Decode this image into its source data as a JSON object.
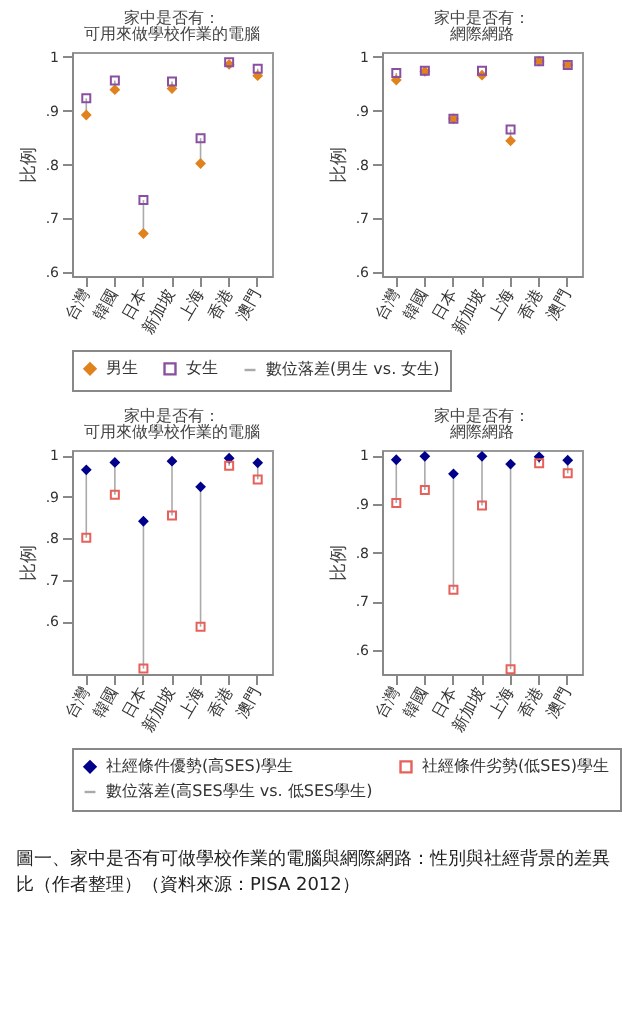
{
  "chart_data": [
    {
      "type": "scatter",
      "title": "家中是否有：",
      "subtitle": "可用來做學校作業的電腦",
      "ylabel": "比例",
      "categories": [
        "台灣",
        "韓國",
        "日本",
        "新加坡",
        "上海",
        "香港",
        "澳門"
      ],
      "ylim": [
        0.593,
        1.009
      ],
      "yticks": [
        {
          "value": 0.6,
          "label": ".6"
        },
        {
          "value": 0.7,
          "label": ".7"
        },
        {
          "value": 0.8,
          "label": ".8"
        },
        {
          "value": 0.9,
          "label": ".9"
        },
        {
          "value": 1,
          "label": "1"
        }
      ],
      "legend": "bottom",
      "annotations": [
        "數位落差(男生 vs. 女生)"
      ],
      "series": [
        {
          "name": "男生",
          "color": "#e0821e",
          "marker": "diamond",
          "values": [
            0.892,
            0.939,
            0.672,
            0.941,
            0.802,
            0.986,
            0.965
          ]
        },
        {
          "name": "女生",
          "color": "#8a4fa0",
          "marker": "square",
          "values": [
            0.923,
            0.956,
            0.734,
            0.954,
            0.849,
            0.99,
            0.978
          ]
        }
      ]
    },
    {
      "type": "scatter",
      "title": "家中是否有：",
      "subtitle": "網際網路",
      "ylabel": "比例",
      "categories": [
        "台灣",
        "韓國",
        "日本",
        "新加坡",
        "上海",
        "香港",
        "澳門"
      ],
      "ylim": [
        0.593,
        1.009
      ],
      "yticks": [
        {
          "value": 0.6,
          "label": ".6"
        },
        {
          "value": 0.7,
          "label": ".7"
        },
        {
          "value": 0.8,
          "label": ".8"
        },
        {
          "value": 0.9,
          "label": ".9"
        },
        {
          "value": 1,
          "label": "1"
        }
      ],
      "series": [
        {
          "name": "男生",
          "color": "#e0821e",
          "marker": "diamond",
          "values": [
            0.957,
            0.973,
            0.885,
            0.966,
            0.844,
            0.992,
            0.985
          ]
        },
        {
          "name": "女生",
          "color": "#8a4fa0",
          "marker": "square",
          "values": [
            0.97,
            0.974,
            0.885,
            0.974,
            0.865,
            0.992,
            0.985
          ]
        }
      ]
    },
    {
      "type": "scatter",
      "title": "家中是否有：",
      "subtitle": "可用來做學校作業的電腦",
      "ylabel": "比例",
      "categories": [
        "台灣",
        "韓國",
        "日本",
        "新加坡",
        "上海",
        "香港",
        "澳門"
      ],
      "ylim": [
        0.472,
        1.013
      ],
      "yticks": [
        {
          "value": 0.6,
          "label": ".6"
        },
        {
          "value": 0.7,
          "label": ".7"
        },
        {
          "value": 0.8,
          "label": ".8"
        },
        {
          "value": 0.9,
          "label": ".9"
        },
        {
          "value": 1,
          "label": "1"
        }
      ],
      "legend": "bottom",
      "annotations": [
        "數位落差(高SES學生 vs. 低SES學生)"
      ],
      "series": [
        {
          "name": "社經條件優勢(高SES)學生",
          "color": "#00008b",
          "marker": "diamond",
          "values": [
            0.965,
            0.983,
            0.841,
            0.986,
            0.924,
            0.993,
            0.982
          ]
        },
        {
          "name": "社經條件劣勢(低SES)學生",
          "color": "#e8605a",
          "marker": "square",
          "values": [
            0.801,
            0.905,
            0.485,
            0.855,
            0.586,
            0.975,
            0.942
          ]
        }
      ]
    },
    {
      "type": "scatter",
      "title": "家中是否有：",
      "subtitle": "網際網路",
      "ylabel": "比例",
      "categories": [
        "台灣",
        "韓國",
        "日本",
        "新加坡",
        "上海",
        "香港",
        "澳門"
      ],
      "ylim": [
        0.551,
        1.011
      ],
      "yticks": [
        {
          "value": 0.6,
          "label": ".6"
        },
        {
          "value": 0.7,
          "label": ".7"
        },
        {
          "value": 0.8,
          "label": ".8"
        },
        {
          "value": 0.9,
          "label": ".9"
        },
        {
          "value": 1,
          "label": "1"
        }
      ],
      "annotations": [
        "圖一、家中是否有可做學校作業的電腦與網際網路：性別與社經背景的差異比（作者整理）（資料來源：PISA 2012）"
      ],
      "series": [
        {
          "name": "社經條件優勢(高SES)學生",
          "color": "#00008b",
          "marker": "diamond",
          "values": [
            0.991,
            0.998,
            0.962,
            0.998,
            0.982,
            0.997,
            0.99
          ]
        },
        {
          "name": "社經條件劣勢(低SES)學生",
          "color": "#e8605a",
          "marker": "square",
          "values": [
            0.902,
            0.929,
            0.724,
            0.897,
            0.561,
            0.984,
            0.963
          ]
        }
      ]
    }
  ]
}
